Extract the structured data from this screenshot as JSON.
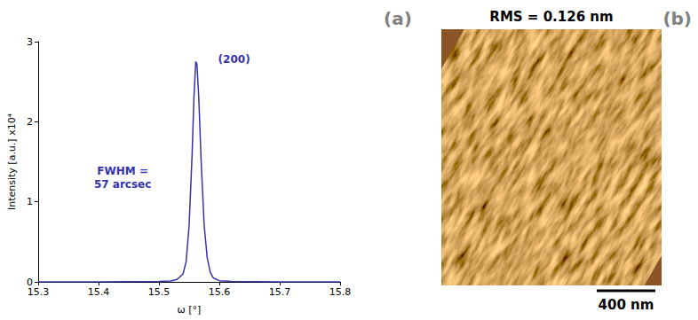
{
  "chart_data": {
    "type": "line",
    "x_label": "ω [°]",
    "y_label": "Intensity [a.u.] x10⁴",
    "xlim": [
      15.3,
      15.8
    ],
    "xticks": [
      15.3,
      15.4,
      15.5,
      15.6,
      15.7,
      15.8
    ],
    "ylim": [
      0,
      3
    ],
    "yticks": [
      0,
      1,
      2,
      3
    ],
    "grid": false,
    "color": "#3333aa",
    "x": [
      15.3,
      15.4,
      15.5,
      15.52,
      15.53,
      15.54,
      15.545,
      15.55,
      15.555,
      15.558,
      15.561,
      15.563,
      15.566,
      15.57,
      15.575,
      15.58,
      15.585,
      15.59,
      15.6,
      15.62,
      15.7,
      15.8
    ],
    "values": [
      0,
      0,
      0.005,
      0.01,
      0.03,
      0.1,
      0.25,
      0.7,
      1.6,
      2.3,
      2.75,
      2.72,
      2.3,
      1.5,
      0.7,
      0.3,
      0.12,
      0.05,
      0.015,
      0.005,
      0,
      0
    ],
    "annotations": [
      "(200)",
      "FWHM =\n57 arcsec"
    ]
  },
  "panel_labels": [
    "(a)",
    "(b)"
  ],
  "afm_image": {
    "title": "RMS = 0.126 nm",
    "scale_bar": "400 nm"
  }
}
